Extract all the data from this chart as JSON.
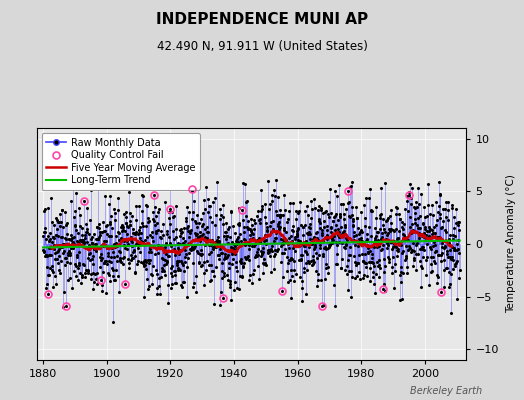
{
  "title": "INDEPENDENCE MUNI AP",
  "subtitle": "42.490 N, 91.911 W (United States)",
  "ylabel": "Temperature Anomaly (°C)",
  "watermark": "Berkeley Earth",
  "xlim": [
    1878,
    2013
  ],
  "ylim": [
    -11,
    11
  ],
  "yticks": [
    -10,
    -5,
    0,
    5,
    10
  ],
  "xticks": [
    1880,
    1900,
    1920,
    1940,
    1960,
    1980,
    2000
  ],
  "start_year": 1880,
  "end_year": 2010,
  "background_color": "#d8d8d8",
  "plot_background": "#e8e8e8",
  "raw_line_color": "#4444ff",
  "raw_marker_color": "#000000",
  "qc_fail_color": "#ff44aa",
  "moving_avg_color": "#cc0000",
  "trend_color": "#00bb00",
  "legend_box_color": "#ffffff",
  "seed": 42,
  "figwidth": 5.24,
  "figheight": 4.0,
  "dpi": 100
}
